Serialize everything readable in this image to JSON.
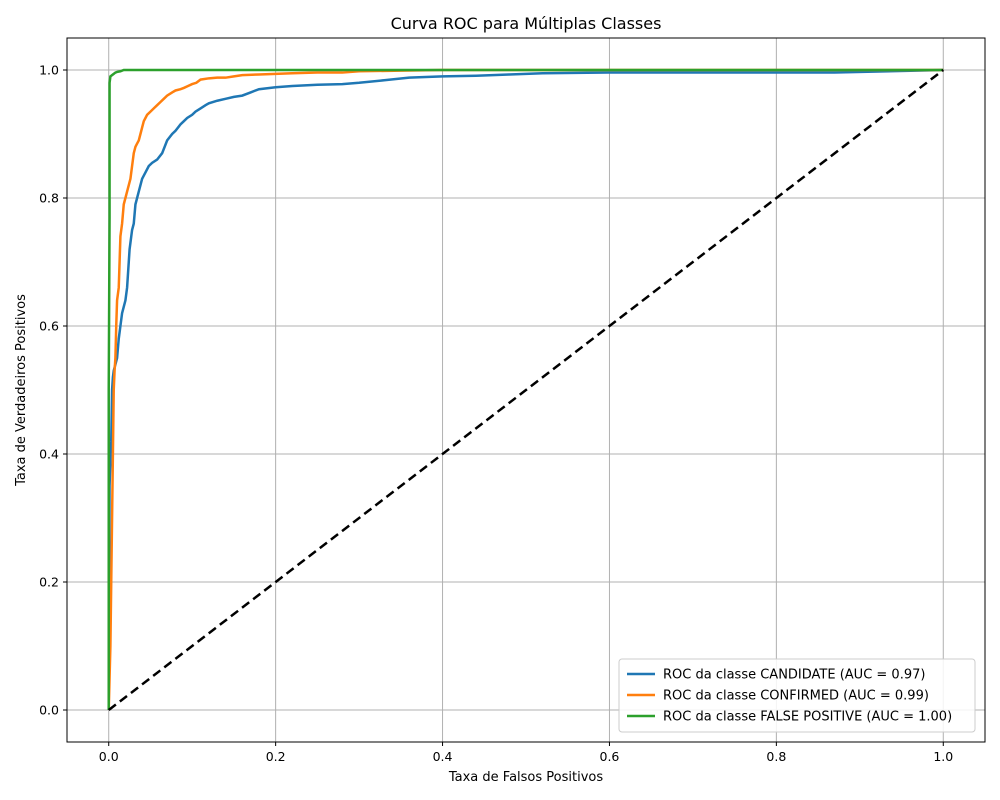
{
  "chart_data": {
    "type": "line",
    "title": "Curva ROC para Múltiplas Classes",
    "xlabel": "Taxa de Falsos Positivos",
    "ylabel": "Taxa de Verdadeiros Positivos",
    "xlim": [
      -0.05,
      1.05
    ],
    "ylim": [
      -0.05,
      1.05
    ],
    "xticks": [
      0.0,
      0.2,
      0.4,
      0.6,
      0.8,
      1.0
    ],
    "yticks": [
      0.0,
      0.2,
      0.4,
      0.6,
      0.8,
      1.0
    ],
    "xtick_labels": [
      "0.0",
      "0.2",
      "0.4",
      "0.6",
      "0.8",
      "1.0"
    ],
    "ytick_labels": [
      "0.0",
      "0.2",
      "0.4",
      "0.6",
      "0.8",
      "1.0"
    ],
    "grid": true,
    "legend_position": "bottom-right",
    "series": [
      {
        "name": "ROC da classe CANDIDATE (AUC = 0.97)",
        "color": "#1f77b4",
        "x": [
          0.0,
          0.001,
          0.002,
          0.003,
          0.004,
          0.005,
          0.006,
          0.008,
          0.01,
          0.012,
          0.014,
          0.016,
          0.018,
          0.02,
          0.022,
          0.024,
          0.025,
          0.026,
          0.027,
          0.028,
          0.03,
          0.032,
          0.034,
          0.036,
          0.038,
          0.04,
          0.044,
          0.048,
          0.052,
          0.058,
          0.064,
          0.07,
          0.076,
          0.08,
          0.086,
          0.09,
          0.094,
          0.1,
          0.104,
          0.11,
          0.116,
          0.12,
          0.13,
          0.14,
          0.15,
          0.16,
          0.17,
          0.18,
          0.2,
          0.22,
          0.25,
          0.28,
          0.3,
          0.33,
          0.36,
          0.4,
          0.44,
          0.48,
          0.52,
          0.6,
          0.7,
          0.8,
          0.87,
          1.0
        ],
        "y": [
          0.0,
          0.35,
          0.39,
          0.42,
          0.5,
          0.52,
          0.53,
          0.54,
          0.55,
          0.58,
          0.6,
          0.62,
          0.63,
          0.64,
          0.66,
          0.7,
          0.72,
          0.73,
          0.74,
          0.75,
          0.76,
          0.79,
          0.8,
          0.81,
          0.82,
          0.83,
          0.84,
          0.85,
          0.855,
          0.86,
          0.87,
          0.89,
          0.9,
          0.905,
          0.915,
          0.92,
          0.925,
          0.93,
          0.935,
          0.94,
          0.945,
          0.948,
          0.952,
          0.955,
          0.958,
          0.96,
          0.965,
          0.97,
          0.973,
          0.975,
          0.977,
          0.978,
          0.98,
          0.984,
          0.988,
          0.99,
          0.991,
          0.993,
          0.995,
          0.996,
          0.996,
          0.996,
          0.996,
          1.0
        ]
      },
      {
        "name": "ROC da classe CONFIRMED (AUC = 0.99)",
        "color": "#ff7f0e",
        "x": [
          0.0,
          0.001,
          0.002,
          0.003,
          0.004,
          0.005,
          0.006,
          0.007,
          0.008,
          0.009,
          0.01,
          0.012,
          0.013,
          0.014,
          0.016,
          0.018,
          0.02,
          0.022,
          0.024,
          0.026,
          0.028,
          0.03,
          0.032,
          0.034,
          0.036,
          0.038,
          0.04,
          0.042,
          0.044,
          0.046,
          0.05,
          0.054,
          0.058,
          0.062,
          0.066,
          0.07,
          0.076,
          0.08,
          0.086,
          0.09,
          0.095,
          0.1,
          0.105,
          0.11,
          0.12,
          0.13,
          0.14,
          0.15,
          0.16,
          0.18,
          0.2,
          0.22,
          0.25,
          0.28,
          0.3,
          0.35,
          0.4,
          0.5,
          0.6,
          0.8,
          1.0
        ],
        "y": [
          0.0,
          0.05,
          0.1,
          0.2,
          0.3,
          0.4,
          0.5,
          0.53,
          0.55,
          0.6,
          0.64,
          0.66,
          0.7,
          0.74,
          0.76,
          0.79,
          0.8,
          0.81,
          0.82,
          0.83,
          0.85,
          0.87,
          0.88,
          0.885,
          0.89,
          0.9,
          0.91,
          0.92,
          0.925,
          0.93,
          0.935,
          0.94,
          0.945,
          0.95,
          0.955,
          0.96,
          0.965,
          0.968,
          0.97,
          0.972,
          0.975,
          0.978,
          0.98,
          0.985,
          0.987,
          0.988,
          0.988,
          0.99,
          0.992,
          0.993,
          0.994,
          0.995,
          0.996,
          0.996,
          0.998,
          0.999,
          1.0,
          1.0,
          1.0,
          1.0,
          1.0
        ]
      },
      {
        "name": "ROC da classe FALSE POSITIVE (AUC = 1.00)",
        "color": "#2ca02c",
        "x": [
          0.0,
          0.0,
          0.001,
          0.001,
          0.002,
          0.004,
          0.006,
          0.008,
          0.01,
          0.014,
          0.018,
          0.03,
          0.1,
          0.3,
          0.5,
          0.8,
          1.0
        ],
        "y": [
          0.0,
          0.5,
          0.77,
          0.98,
          0.99,
          0.992,
          0.994,
          0.996,
          0.997,
          0.998,
          1.0,
          1.0,
          1.0,
          1.0,
          1.0,
          1.0,
          1.0
        ]
      },
      {
        "name": "",
        "color": "#000000",
        "dashed": true,
        "x": [
          0.0,
          1.0
        ],
        "y": [
          0.0,
          1.0
        ]
      }
    ]
  }
}
